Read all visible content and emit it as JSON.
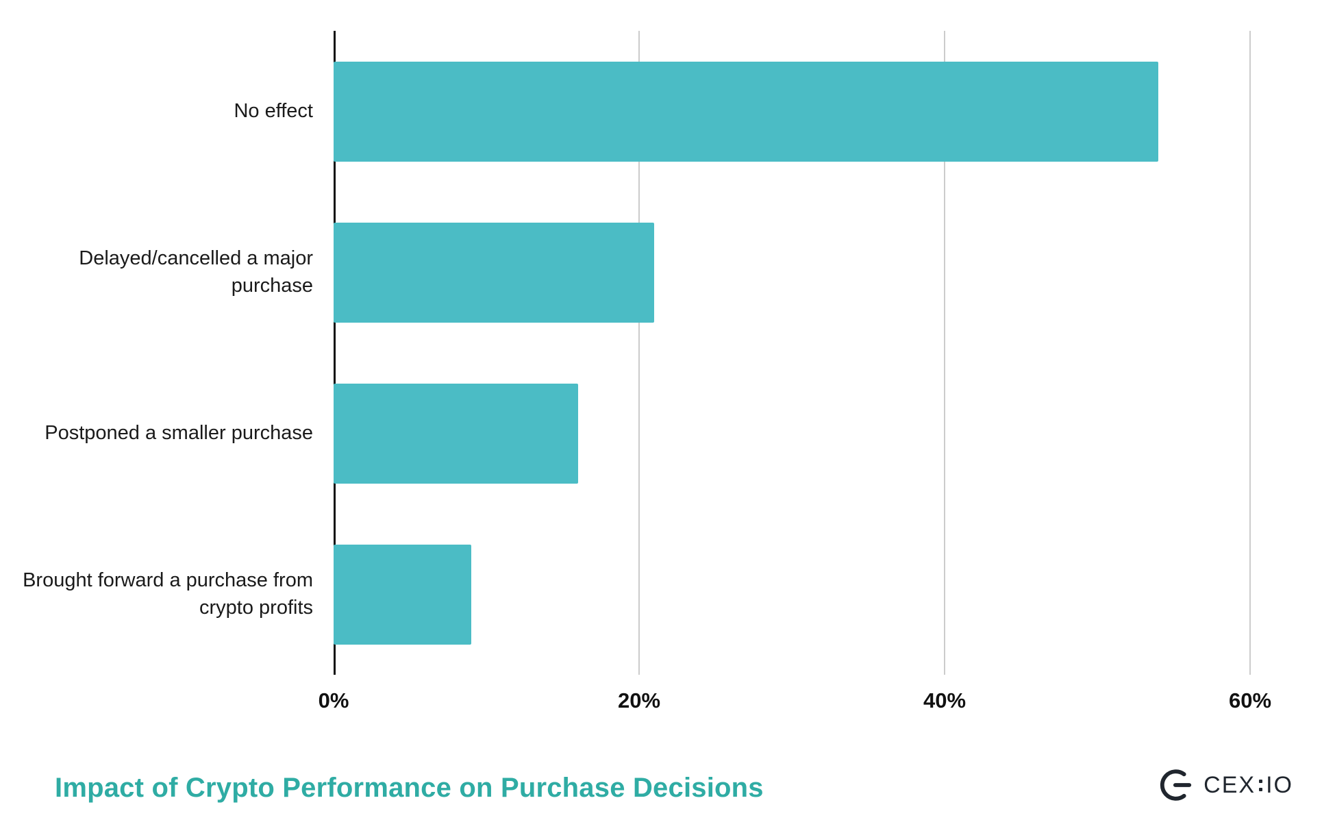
{
  "chart_data": {
    "type": "bar",
    "orientation": "horizontal",
    "title": "Impact of Crypto Performance on Purchase Decisions",
    "categories": [
      "No effect",
      "Delayed/cancelled a major purchase",
      "Postponed a smaller purchase",
      "Brought forward a purchase from crypto profits"
    ],
    "values": [
      54,
      21,
      16,
      9
    ],
    "unit": "%",
    "xlabel": "",
    "ylabel": "",
    "xlim": [
      0,
      60
    ],
    "x_ticks": [
      "0%",
      "20%",
      "40%",
      "60%"
    ],
    "x_tick_values": [
      0,
      20,
      40,
      60
    ],
    "grid": true,
    "legend": false,
    "bar_color": "#4BBCC5",
    "gridline_color": "#cccccc",
    "axis_color": "#111111",
    "title_color": "#2FACA4"
  },
  "footer": {
    "brand_left": "CEX",
    "brand_right": "IO"
  }
}
